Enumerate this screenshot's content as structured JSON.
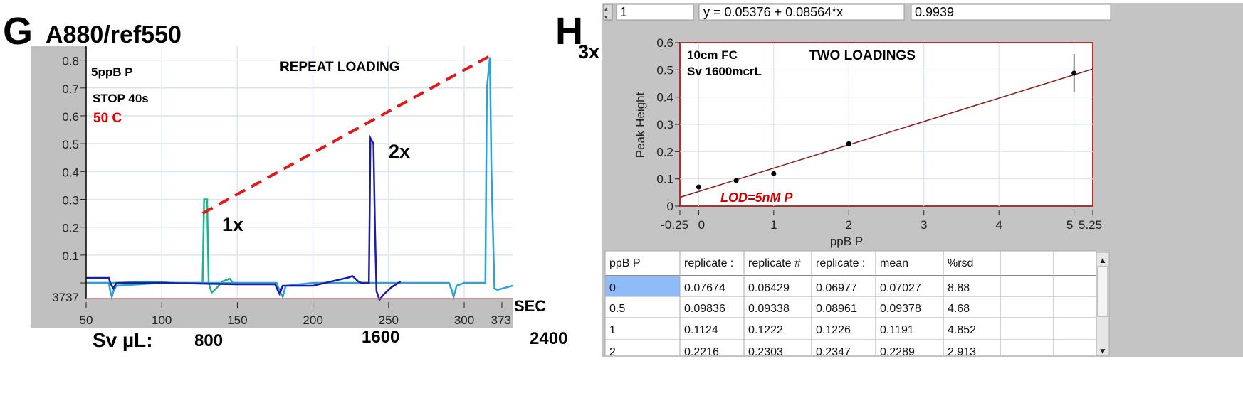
{
  "chart_data": [
    {
      "panel": "G",
      "type": "line",
      "title": "A880/ref550",
      "annotations": {
        "sample": "5ppB P",
        "stop": "STOP 40s",
        "temperature": "50 C",
        "heading": "REPEAT LOADING",
        "peak_labels": [
          "1x",
          "2x",
          "3x"
        ],
        "x_unit": "SEC",
        "sv_label": "Sv µL:",
        "sv_values": [
          "800",
          "1600",
          "2400"
        ]
      },
      "xlabel": "SEC",
      "ylabel": "",
      "xlim": [
        50,
        332
      ],
      "ylim": [
        -0.056,
        0.85
      ],
      "x_ticks": [
        50,
        100,
        150,
        200,
        250,
        300
      ],
      "x_tick_labels": [
        "50",
        "100",
        "150",
        "200",
        "250",
        "300"
      ],
      "x_end_label": "373",
      "y_ticks": [
        0.1,
        0.2,
        0.3,
        0.4,
        0.5,
        0.6,
        0.7,
        0.8
      ],
      "y_tick_labels": [
        "0.1",
        "0.2",
        "0.3",
        "0.4",
        "0.5",
        "0.6",
        "0.7",
        "0.8"
      ],
      "y_min_label": "3737",
      "grid": true,
      "series": [
        {
          "color": "#22b08e",
          "x": [
            50,
            70,
            90,
            110,
            127,
            128,
            130,
            131,
            133,
            136,
            140,
            145,
            147,
            150
          ],
          "y": [
            0.0,
            0.0,
            0.005,
            0.0,
            0.0,
            0.3,
            0.3,
            0.0,
            -0.035,
            -0.02,
            0.005,
            0.015,
            0.0,
            0.0
          ]
        },
        {
          "color": "#2aa2d8",
          "x": [
            50,
            65,
            66,
            67,
            68,
            70,
            100,
            150,
            176,
            178,
            180,
            182,
            200,
            250,
            290,
            292,
            293,
            295,
            300,
            314,
            315,
            317,
            318,
            320,
            322,
            332
          ],
          "y": [
            0.0,
            0.0,
            -0.03,
            -0.05,
            -0.03,
            -0.01,
            0.0,
            0.0,
            0.0,
            -0.03,
            -0.05,
            -0.01,
            0.0,
            0.0,
            0.0,
            -0.03,
            -0.05,
            -0.01,
            0.0,
            0.0,
            0.7,
            0.81,
            0.4,
            -0.02,
            -0.025,
            -0.01
          ]
        },
        {
          "color": "#1c1ca8",
          "x": [
            50,
            65,
            66,
            68,
            70,
            100,
            150,
            175,
            177,
            178,
            180,
            200,
            224,
            226,
            230,
            232,
            237,
            238,
            240,
            241,
            242,
            244,
            247,
            252,
            258
          ],
          "y": [
            0.018,
            0.018,
            0.0,
            -0.02,
            0.0,
            0.0,
            -0.005,
            -0.005,
            -0.03,
            -0.04,
            -0.01,
            -0.01,
            0.02,
            0.025,
            0.005,
            0.0,
            0.0,
            0.52,
            0.5,
            0.2,
            -0.03,
            -0.06,
            -0.04,
            -0.015,
            0.005
          ]
        }
      ],
      "trend_line": {
        "color": "#e01a1a",
        "style": "dashed",
        "x": [
          127,
          317
        ],
        "y": [
          0.25,
          0.815
        ]
      }
    },
    {
      "panel": "H",
      "type": "scatter",
      "title": "TWO LOADINGS",
      "annotations": {
        "cell": "10cm FC",
        "sv": "Sv 1600mcrL",
        "lod": "LOD=5nM P"
      },
      "xlabel": "ppB P",
      "ylabel": "Peak Height",
      "xlim": [
        -0.25,
        5.25
      ],
      "ylim": [
        0,
        0.6
      ],
      "x_ticks": [
        -0.25,
        0,
        1,
        2,
        3,
        4,
        5,
        5.25
      ],
      "x_tick_labels": [
        "-0.25",
        "0",
        "1",
        "2",
        "3",
        "4",
        "5",
        "5.25"
      ],
      "y_ticks": [
        0,
        0.1,
        0.2,
        0.3,
        0.4,
        0.5,
        0.6
      ],
      "y_tick_labels": [
        "0",
        "0.1",
        "0.2",
        "0.3",
        "0.4",
        "0.5",
        "0.6"
      ],
      "grid": true,
      "points": {
        "x": [
          0,
          0.5,
          1,
          2,
          5
        ],
        "y": [
          0.07027,
          0.09378,
          0.1191,
          0.2289,
          0.488
        ],
        "err": [
          0,
          0,
          0,
          0,
          0.07
        ]
      },
      "fit": {
        "intercept": 0.05376,
        "slope": 0.08564,
        "color": "#8b1a1a"
      }
    }
  ],
  "panel_labels": {
    "g": "G",
    "h": "H"
  },
  "controls": {
    "index_value": "1",
    "equation": "y = 0.05376 + 0.08564*x",
    "r_value": "0.9939"
  },
  "table": {
    "headers": [
      "ppB P",
      "replicate :",
      "replicate #",
      "replicate :",
      "mean",
      "%rsd",
      "",
      ""
    ],
    "rows": [
      [
        "0",
        "0.07674",
        "0.06429",
        "0.06977",
        "0.07027",
        "8.88",
        "",
        ""
      ],
      [
        "0.5",
        "0.09836",
        "0.09338",
        "0.08961",
        "0.09378",
        "4.68",
        "",
        ""
      ],
      [
        "1",
        "0.1124",
        "0.1222",
        "0.1226",
        "0.1191",
        "4.852",
        "",
        ""
      ],
      [
        "2",
        "0.2216",
        "0.2303",
        "0.2347",
        "0.2289",
        "2.913",
        "",
        ""
      ]
    ],
    "selected_cell_color": "#8fbcf8"
  }
}
